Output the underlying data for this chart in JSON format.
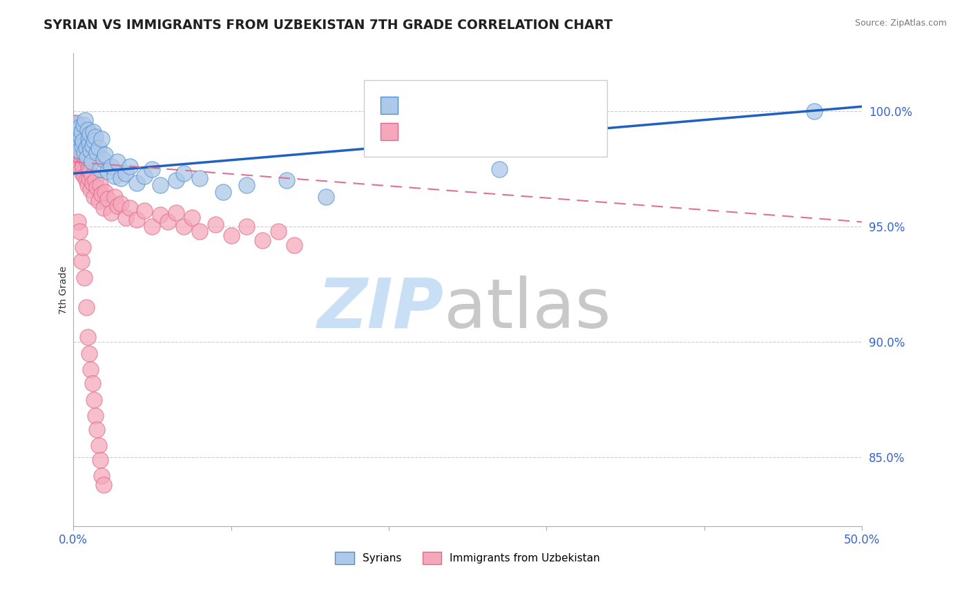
{
  "title": "SYRIAN VS IMMIGRANTS FROM UZBEKISTAN 7TH GRADE CORRELATION CHART",
  "source_text": "Source: ZipAtlas.com",
  "ylabel_label": "7th Grade",
  "x_min": 0.0,
  "x_max": 50.0,
  "y_min": 82.0,
  "y_max": 102.5,
  "y_ticks": [
    85.0,
    90.0,
    95.0,
    100.0
  ],
  "y_tick_labels": [
    "85.0%",
    "90.0%",
    "95.0%",
    "100.0%"
  ],
  "legend_label_blue": "Syrians",
  "legend_label_pink": "Immigrants from Uzbekistan",
  "blue_color": "#adc8e8",
  "pink_color": "#f5a8bc",
  "blue_edge_color": "#5090d0",
  "pink_edge_color": "#e06888",
  "blue_line_color": "#2060c0",
  "pink_line_color": "#e07090",
  "title_color": "#202020",
  "axis_tick_color": "#3366cc",
  "watermark_zip_color": "#c8dff5",
  "watermark_atlas_color": "#c8c8c8",
  "blue_scatter_x": [
    0.1,
    0.15,
    0.2,
    0.25,
    0.3,
    0.35,
    0.4,
    0.45,
    0.5,
    0.55,
    0.6,
    0.65,
    0.7,
    0.75,
    0.8,
    0.85,
    0.9,
    0.95,
    1.0,
    1.05,
    1.1,
    1.15,
    1.2,
    1.25,
    1.3,
    1.4,
    1.5,
    1.6,
    1.7,
    1.8,
    1.9,
    2.0,
    2.2,
    2.4,
    2.6,
    2.8,
    3.0,
    3.3,
    3.6,
    4.0,
    4.5,
    5.0,
    5.5,
    6.5,
    7.0,
    8.0,
    9.5,
    11.0,
    13.5,
    16.0,
    27.0,
    47.0
  ],
  "blue_scatter_y": [
    99.2,
    98.8,
    99.5,
    98.6,
    99.0,
    98.3,
    99.3,
    98.9,
    99.1,
    98.5,
    98.7,
    99.4,
    98.2,
    99.6,
    98.4,
    98.0,
    99.2,
    98.8,
    98.6,
    99.0,
    98.3,
    97.8,
    98.5,
    99.1,
    98.7,
    98.9,
    98.2,
    98.4,
    97.5,
    98.8,
    97.9,
    98.1,
    97.4,
    97.6,
    97.2,
    97.8,
    97.1,
    97.3,
    97.6,
    96.9,
    97.2,
    97.5,
    96.8,
    97.0,
    97.3,
    97.1,
    96.5,
    96.8,
    97.0,
    96.3,
    97.5,
    100.0
  ],
  "pink_scatter_x": [
    0.05,
    0.08,
    0.1,
    0.12,
    0.15,
    0.18,
    0.2,
    0.22,
    0.25,
    0.28,
    0.3,
    0.32,
    0.35,
    0.38,
    0.4,
    0.42,
    0.45,
    0.48,
    0.5,
    0.52,
    0.55,
    0.58,
    0.6,
    0.65,
    0.7,
    0.75,
    0.8,
    0.85,
    0.9,
    0.95,
    1.0,
    1.05,
    1.1,
    1.15,
    1.2,
    1.3,
    1.4,
    1.5,
    1.6,
    1.7,
    1.8,
    1.9,
    2.0,
    2.2,
    2.4,
    2.6,
    2.8,
    3.0,
    3.3,
    3.6,
    4.0,
    4.5,
    5.0,
    5.5,
    6.0,
    6.5,
    7.0,
    7.5,
    8.0,
    9.0,
    10.0,
    11.0,
    12.0,
    13.0,
    14.0,
    0.3,
    0.4,
    0.5,
    0.6,
    0.7,
    0.8,
    0.9,
    1.0,
    1.1,
    1.2,
    1.3,
    1.4,
    1.5,
    1.6,
    1.7,
    1.8,
    1.9
  ],
  "pink_scatter_y": [
    99.2,
    99.5,
    98.8,
    99.3,
    98.5,
    99.0,
    98.2,
    99.4,
    98.7,
    99.1,
    98.4,
    98.9,
    97.8,
    99.2,
    98.1,
    98.6,
    97.5,
    98.3,
    97.9,
    98.7,
    97.3,
    98.1,
    97.6,
    98.4,
    97.2,
    98.0,
    97.0,
    97.8,
    96.8,
    97.5,
    97.1,
    97.4,
    96.6,
    97.2,
    96.9,
    96.3,
    97.0,
    96.7,
    96.1,
    96.8,
    96.4,
    95.8,
    96.5,
    96.2,
    95.6,
    96.3,
    95.9,
    96.0,
    95.4,
    95.8,
    95.3,
    95.7,
    95.0,
    95.5,
    95.2,
    95.6,
    95.0,
    95.4,
    94.8,
    95.1,
    94.6,
    95.0,
    94.4,
    94.8,
    94.2,
    95.2,
    94.8,
    93.5,
    94.1,
    92.8,
    91.5,
    90.2,
    89.5,
    88.8,
    88.2,
    87.5,
    86.8,
    86.2,
    85.5,
    84.9,
    84.2,
    83.8
  ],
  "blue_trend_x0": 0.0,
  "blue_trend_x1": 50.0,
  "blue_trend_y0": 97.3,
  "blue_trend_y1": 100.2,
  "pink_trend_x0": 0.0,
  "pink_trend_x1": 50.0,
  "pink_trend_y0": 97.8,
  "pink_trend_y1": 95.2
}
